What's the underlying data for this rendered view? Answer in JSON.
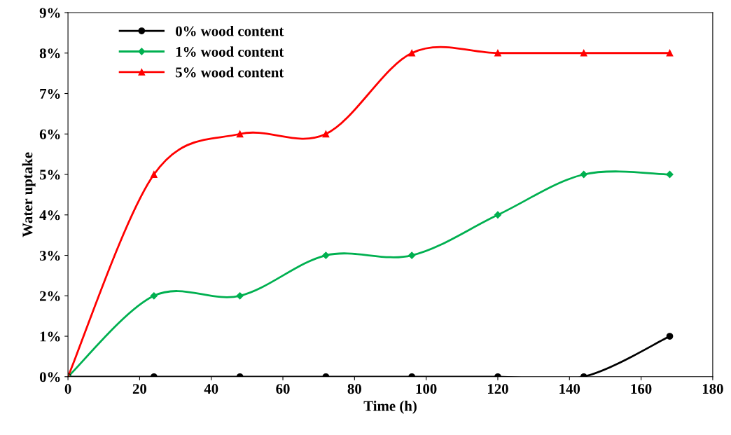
{
  "chart_data": {
    "type": "line",
    "xlabel": "Time (h)",
    "ylabel": "Water uptake",
    "x": [
      0,
      24,
      48,
      72,
      96,
      120,
      144,
      168
    ],
    "series": [
      {
        "name": "0% wood content",
        "color": "#000000",
        "marker": "circle",
        "values": [
          0,
          0,
          0,
          0,
          0,
          0,
          0,
          1
        ]
      },
      {
        "name": "1% wood content",
        "color": "#00b050",
        "marker": "diamond",
        "values": [
          0,
          2,
          2,
          3,
          3,
          4,
          5,
          5
        ]
      },
      {
        "name": "5% wood content",
        "color": "#ff0000",
        "marker": "triangle",
        "values": [
          0,
          5,
          6,
          6,
          8,
          8,
          8,
          8
        ]
      }
    ],
    "xlim": [
      0,
      180
    ],
    "xticks": [
      0,
      20,
      40,
      60,
      80,
      100,
      120,
      140,
      160,
      180
    ],
    "ylim": [
      0,
      9
    ],
    "yticks": [
      {
        "value": 0,
        "label": "0%"
      },
      {
        "value": 1,
        "label": "1%"
      },
      {
        "value": 2,
        "label": "2%"
      },
      {
        "value": 3,
        "label": "3%"
      },
      {
        "value": 4,
        "label": "4%"
      },
      {
        "value": 5,
        "label": "5%"
      },
      {
        "value": 6,
        "label": "6%"
      },
      {
        "value": 7,
        "label": "7%"
      },
      {
        "value": 8,
        "label": "8%"
      },
      {
        "value": 9,
        "label": "9%"
      }
    ],
    "grid": false,
    "legend": "top left"
  }
}
